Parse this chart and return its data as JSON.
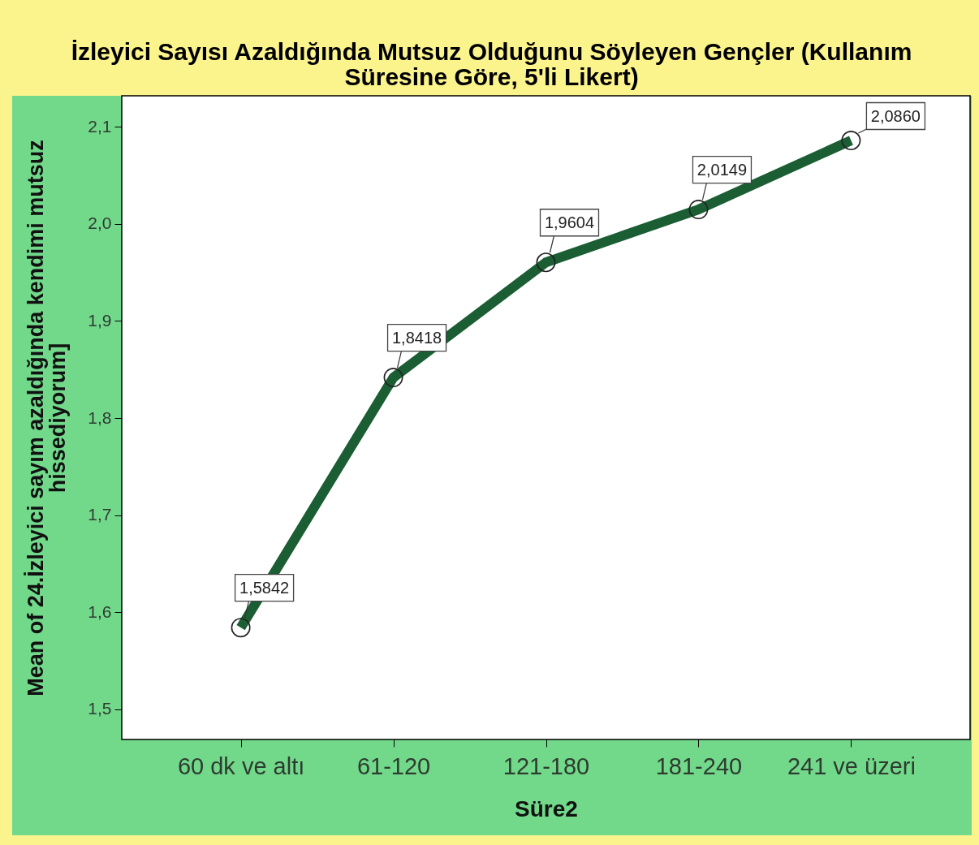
{
  "chart_data": {
    "type": "line",
    "title": "İzleyici Sayısı Azaldığında Mutsuz Olduğunu Söyleyen Gençler (Kullanım Süresine Göre, 5'li Likert)",
    "xlabel": "Süre2",
    "ylabel": "Mean of 24.İzleyici sayım azaldığında kendimi mutsuz hissediyorum]",
    "categories": [
      "60 dk ve altı",
      "61-120",
      "121-180",
      "181-240",
      "241 ve üzeri"
    ],
    "values": [
      1.5842,
      1.8418,
      1.9604,
      2.0149,
      2.086
    ],
    "value_labels": [
      "1,5842",
      "1,8418",
      "1,9604",
      "2,0149",
      "2,0860"
    ],
    "color": "#1b5e33",
    "ylim": [
      1.469,
      2.132
    ],
    "yticks": [
      {
        "value": 1.5,
        "label": "1,5"
      },
      {
        "value": 1.6,
        "label": "1,6"
      },
      {
        "value": 1.7,
        "label": "1,7"
      },
      {
        "value": 1.8,
        "label": "1,8"
      },
      {
        "value": 1.9,
        "label": "1,9"
      },
      {
        "value": 2.0,
        "label": "2,0"
      },
      {
        "value": 2.1,
        "label": "2,1"
      }
    ],
    "grid": false,
    "marker": "circle",
    "line_style": "solid"
  }
}
